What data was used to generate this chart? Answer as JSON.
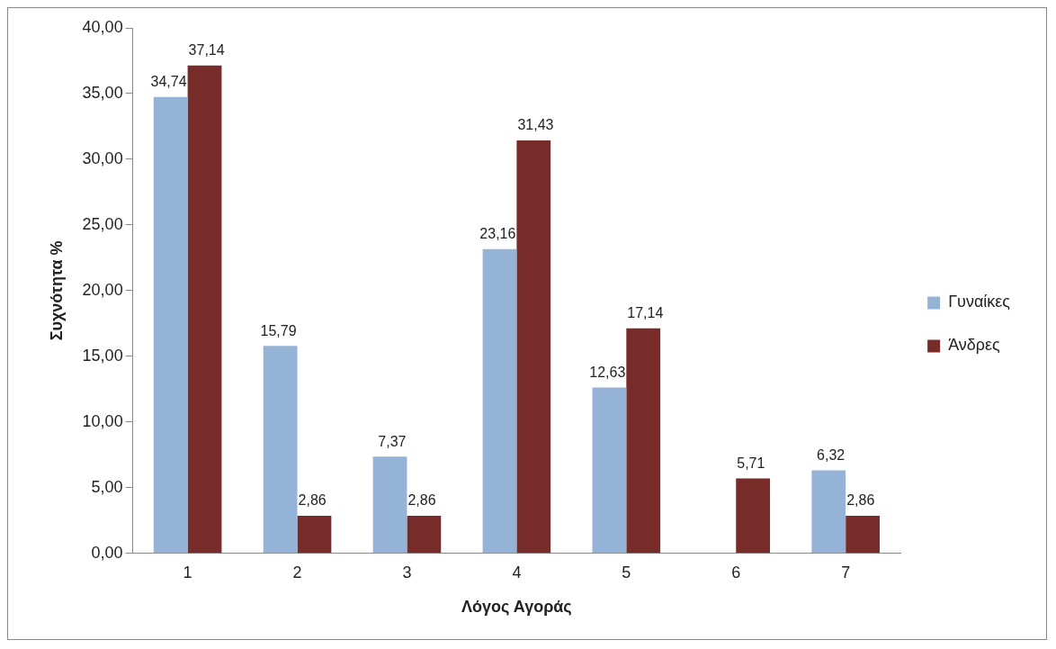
{
  "chart_data": {
    "type": "bar",
    "xlabel": "Λόγος Αγοράς",
    "ylabel": "Συχνότητα %",
    "categories": [
      "1",
      "2",
      "3",
      "4",
      "5",
      "6",
      "7"
    ],
    "series": [
      {
        "name": "Γυναίκες",
        "color": "#95b3d7",
        "values": [
          34.74,
          15.79,
          7.37,
          23.16,
          12.63,
          null,
          6.32
        ],
        "value_labels": [
          "34,74",
          "15,79",
          "7,37",
          "23,16",
          "12,63",
          null,
          "6,32"
        ]
      },
      {
        "name": "Άνδρες",
        "color": "#772c2a",
        "values": [
          37.14,
          2.86,
          2.86,
          31.43,
          17.14,
          5.71,
          2.86
        ],
        "value_labels": [
          "37,14",
          "2,86",
          "2,86",
          "31,43",
          "17,14",
          "5,71",
          "2,86"
        ]
      }
    ],
    "ylim": [
      0,
      40
    ],
    "yticks": [
      {
        "value": 0,
        "label": "0,00"
      },
      {
        "value": 5,
        "label": "5,00"
      },
      {
        "value": 10,
        "label": "10,00"
      },
      {
        "value": 15,
        "label": "15,00"
      },
      {
        "value": 20,
        "label": "20,00"
      },
      {
        "value": 25,
        "label": "25,00"
      },
      {
        "value": 30,
        "label": "30,00"
      },
      {
        "value": 35,
        "label": "35,00"
      },
      {
        "value": 40,
        "label": "40,00"
      }
    ],
    "legend": "right"
  }
}
